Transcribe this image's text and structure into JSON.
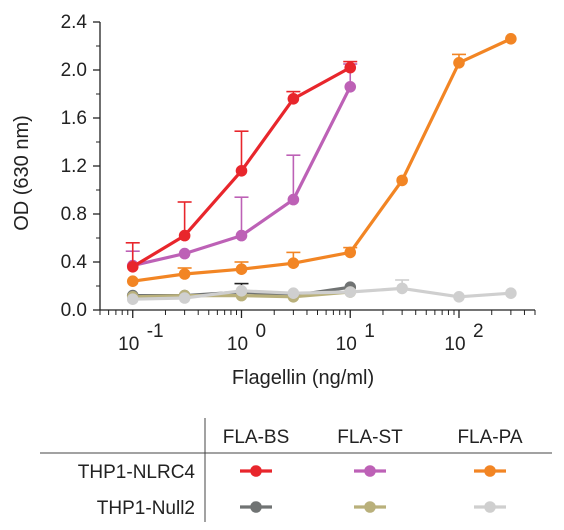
{
  "chart_data": {
    "type": "line",
    "xlabel": "Flagellin (ng/ml)",
    "ylabel": "OD (630 nm)",
    "xscale": "log",
    "xlim": [
      0.05,
      500
    ],
    "ylim": [
      0,
      2.4
    ],
    "y_ticks": [
      "0.0",
      "0.4",
      "0.8",
      "1.2",
      "1.6",
      "2.0",
      "2.4"
    ],
    "x_ticks": [
      {
        "base": "10",
        "exp": "-1"
      },
      {
        "base": "10",
        "exp": "0"
      },
      {
        "base": "10",
        "exp": "1"
      },
      {
        "base": "10",
        "exp": "2"
      }
    ],
    "grid": false,
    "legend": {
      "columns": [
        "FLA-BS",
        "FLA-ST",
        "FLA-PA"
      ],
      "rows": [
        "THP1-NLRC4",
        "THP1-Null2"
      ]
    },
    "series": [
      {
        "cell": "THP1-NLRC4",
        "ligand": "FLA-BS",
        "color": "#e8262c",
        "x": [
          0.1,
          0.3,
          1,
          3,
          10
        ],
        "y": [
          0.36,
          0.62,
          1.16,
          1.76,
          2.02
        ],
        "err": [
          0.2,
          0.28,
          0.33,
          0.06,
          0.05
        ]
      },
      {
        "cell": "THP1-NLRC4",
        "ligand": "FLA-ST",
        "color": "#bd61b6",
        "x": [
          0.1,
          0.3,
          1,
          3,
          10
        ],
        "y": [
          0.37,
          0.47,
          0.62,
          0.92,
          1.86
        ],
        "err": [
          0.12,
          0.0,
          0.32,
          0.37,
          0.19
        ]
      },
      {
        "cell": "THP1-NLRC4",
        "ligand": "FLA-PA",
        "color": "#f28524",
        "x": [
          0.1,
          0.3,
          1,
          3,
          10,
          30,
          100,
          300
        ],
        "y": [
          0.24,
          0.3,
          0.34,
          0.39,
          0.48,
          1.08,
          2.06,
          2.26
        ],
        "err": [
          0.0,
          0.05,
          0.06,
          0.09,
          0.04,
          0.0,
          0.07,
          0.0
        ]
      },
      {
        "cell": "THP1-Null2",
        "ligand": "FLA-BS",
        "color": "#707373",
        "x": [
          0.1,
          0.3,
          1,
          3,
          10
        ],
        "y": [
          0.12,
          0.12,
          0.15,
          0.12,
          0.19
        ],
        "err": [
          0.0,
          0.0,
          0.07,
          0.0,
          0.0
        ]
      },
      {
        "cell": "THP1-Null2",
        "ligand": "FLA-ST",
        "color": "#b9b07b",
        "x": [
          0.1,
          0.3,
          1,
          3,
          10
        ],
        "y": [
          0.11,
          0.12,
          0.12,
          0.11,
          0.15
        ],
        "err": [
          0.0,
          0.0,
          0.0,
          0.0,
          0.0
        ]
      },
      {
        "cell": "THP1-Null2",
        "ligand": "FLA-PA",
        "color": "#cfcfcf",
        "x": [
          0.1,
          0.3,
          1,
          3,
          10,
          30,
          100,
          300
        ],
        "y": [
          0.09,
          0.1,
          0.16,
          0.14,
          0.15,
          0.18,
          0.11,
          0.14
        ],
        "err": [
          0.0,
          0.0,
          0.0,
          0.0,
          0.0,
          0.07,
          0.0,
          0.0
        ]
      }
    ]
  },
  "errorbar_colors": {
    "Null2-BS": "#222222"
  }
}
